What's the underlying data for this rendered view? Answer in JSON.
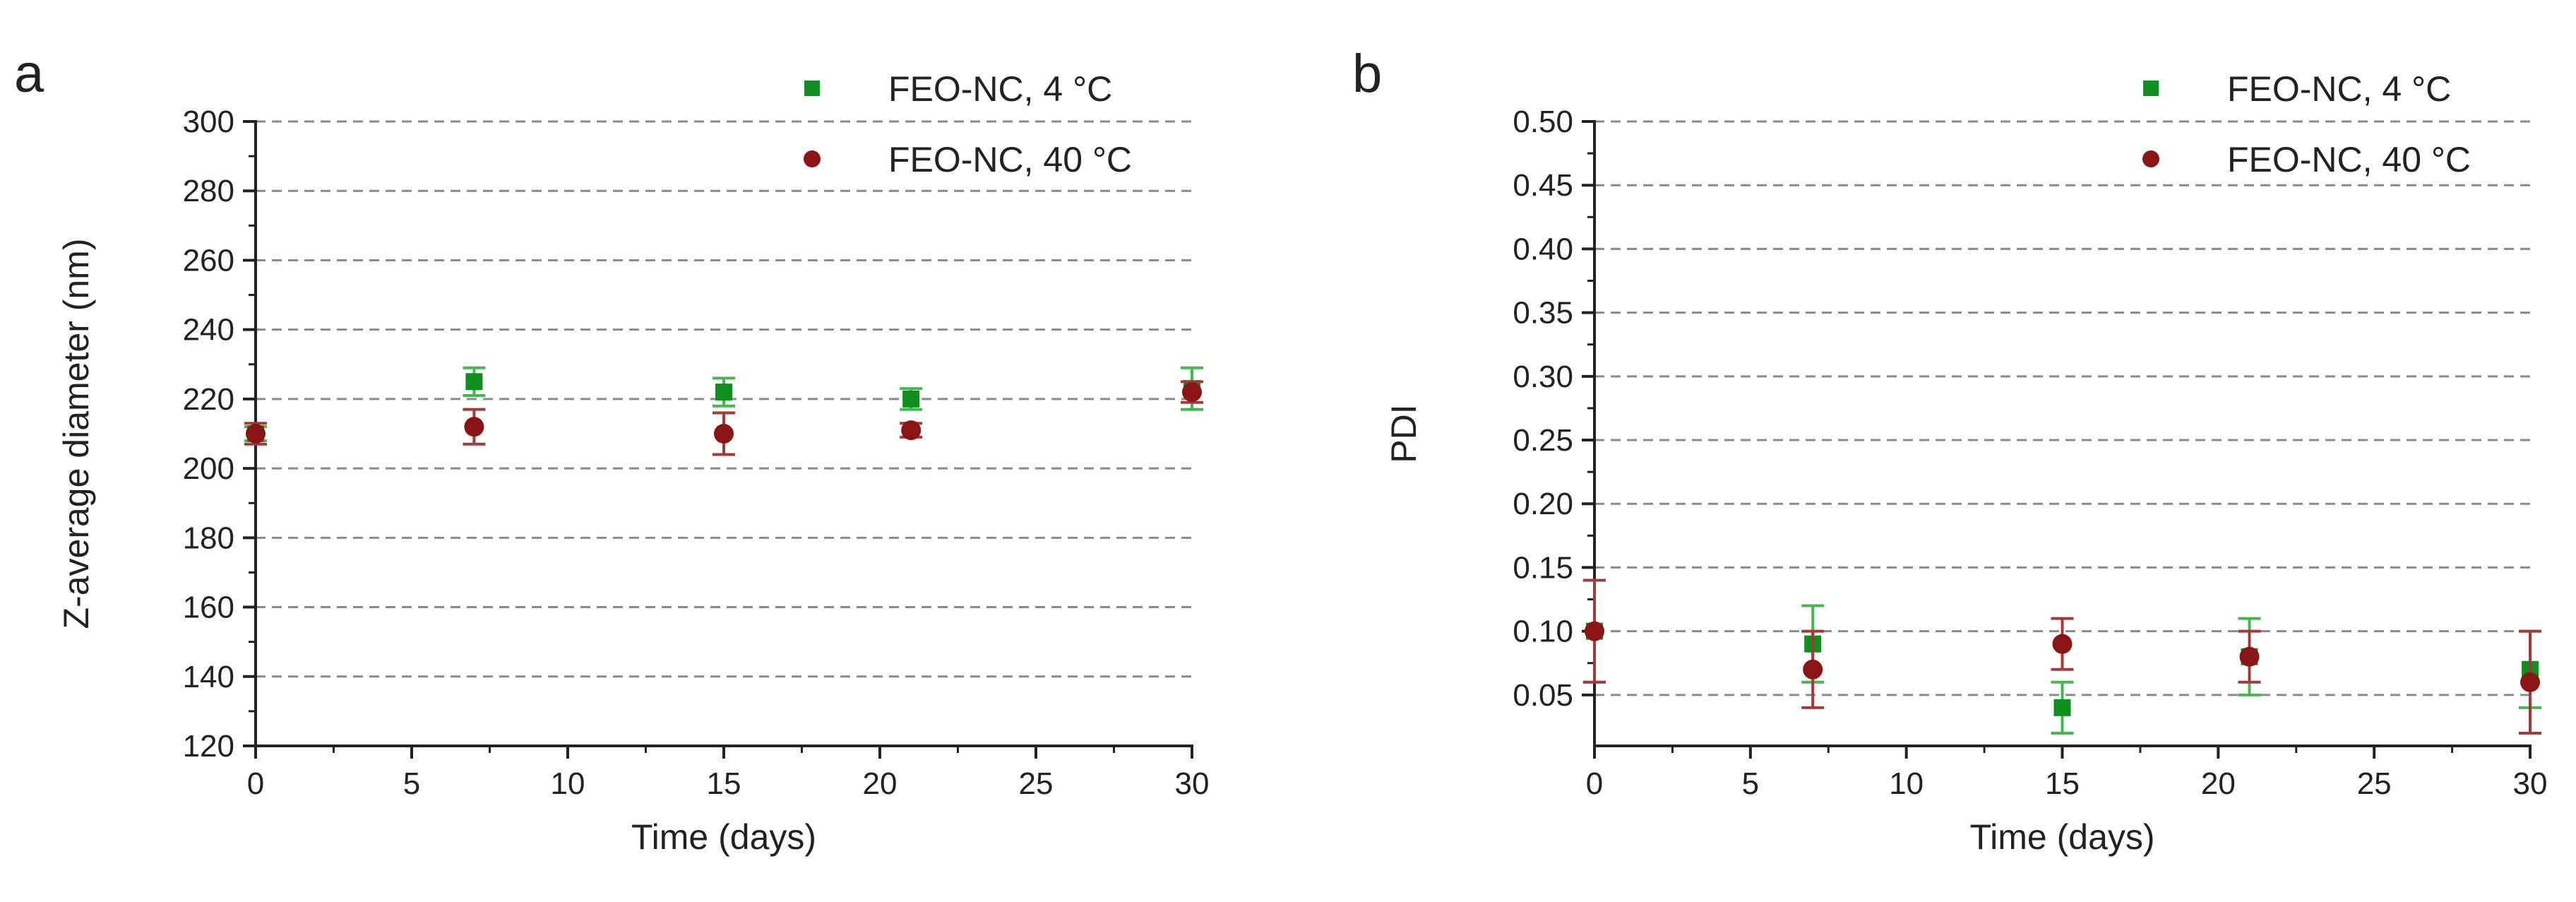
{
  "chart_data": [
    {
      "type": "scatter",
      "panel_label": "a",
      "xlabel": "Time (days)",
      "ylabel": "Z-average diameter (nm)",
      "xlim": [
        0,
        30
      ],
      "ylim": [
        120,
        300
      ],
      "xticks": [
        0,
        5,
        10,
        15,
        20,
        25,
        30
      ],
      "yticks": [
        120,
        140,
        160,
        180,
        200,
        220,
        240,
        260,
        280,
        300
      ],
      "grid": "horizontal dashed",
      "legend_position": "top-right",
      "series": [
        {
          "name": "FEO-NC, 4 °C",
          "marker": "square",
          "color": "#0f8f1f",
          "error_color": "#44b84e",
          "points": [
            {
              "x": 0,
              "y": 210,
              "err": 2
            },
            {
              "x": 7,
              "y": 225,
              "err": 4
            },
            {
              "x": 15,
              "y": 222,
              "err": 4
            },
            {
              "x": 21,
              "y": 220,
              "err": 3
            },
            {
              "x": 30,
              "y": 223,
              "err": 6
            }
          ]
        },
        {
          "name": "FEO-NC, 40 °C",
          "marker": "circle",
          "color": "#8b1414",
          "error_color": "#a33a3a",
          "points": [
            {
              "x": 0,
              "y": 210,
              "err": 3
            },
            {
              "x": 7,
              "y": 212,
              "err": 5
            },
            {
              "x": 15,
              "y": 210,
              "err": 6
            },
            {
              "x": 21,
              "y": 211,
              "err": 2
            },
            {
              "x": 30,
              "y": 222,
              "err": 3
            }
          ]
        }
      ]
    },
    {
      "type": "scatter",
      "panel_label": "b",
      "xlabel": "Time (days)",
      "ylabel": "PDI",
      "xlim": [
        0,
        30
      ],
      "ylim": [
        0.01,
        0.5
      ],
      "xticks": [
        0,
        5,
        10,
        15,
        20,
        25,
        30
      ],
      "yticks": [
        0.05,
        0.1,
        0.15,
        0.2,
        0.25,
        0.3,
        0.35,
        0.4,
        0.45,
        0.5
      ],
      "ytick_labels": [
        "0.05",
        "0.10",
        "0.15",
        "0.20",
        "0.25",
        "0.30",
        "0.35",
        "0.40",
        "0.45",
        "0.50"
      ],
      "grid": "horizontal dashed",
      "legend_position": "top-right",
      "series": [
        {
          "name": "FEO-NC, 4 °C",
          "marker": "square",
          "color": "#0f8f1f",
          "error_color": "#44b84e",
          "points": [
            {
              "x": 0,
              "y": 0.1,
              "err": 0.04
            },
            {
              "x": 7,
              "y": 0.09,
              "err": 0.03
            },
            {
              "x": 15,
              "y": 0.04,
              "err": 0.02
            },
            {
              "x": 21,
              "y": 0.08,
              "err": 0.03
            },
            {
              "x": 30,
              "y": 0.07,
              "err": 0.03
            }
          ]
        },
        {
          "name": "FEO-NC, 40 °C",
          "marker": "circle",
          "color": "#8b1414",
          "error_color": "#a33a3a",
          "points": [
            {
              "x": 0,
              "y": 0.1,
              "err": 0.04
            },
            {
              "x": 7,
              "y": 0.07,
              "err": 0.03
            },
            {
              "x": 15,
              "y": 0.09,
              "err": 0.02
            },
            {
              "x": 21,
              "y": 0.08,
              "err": 0.02
            },
            {
              "x": 30,
              "y": 0.06,
              "err": 0.04
            }
          ]
        }
      ]
    }
  ]
}
